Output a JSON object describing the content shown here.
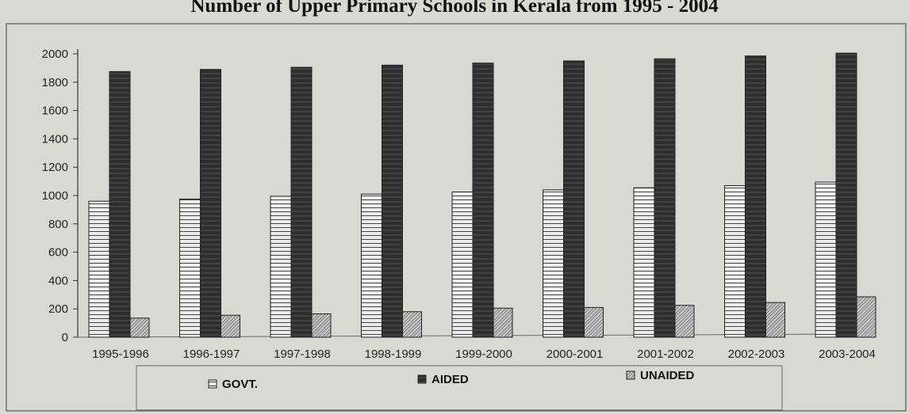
{
  "chart_data": {
    "type": "bar",
    "title": "Number of Upper Primary Schools in Kerala from 1995 - 2004",
    "categories": [
      "1995-1996",
      "1996-1997",
      "1997-1998",
      "1998-1999",
      "1999-2000",
      "2000-2001",
      "2001-2002",
      "2002-2003",
      "2003-2004"
    ],
    "series": [
      {
        "name": "GOVT.",
        "values": [
          960,
          975,
          995,
          1010,
          1025,
          1040,
          1055,
          1070,
          1095
        ]
      },
      {
        "name": "AIDED",
        "values": [
          1875,
          1890,
          1905,
          1920,
          1935,
          1950,
          1965,
          1985,
          2005
        ]
      },
      {
        "name": "UNAIDED",
        "values": [
          135,
          155,
          165,
          180,
          205,
          210,
          225,
          245,
          285
        ]
      }
    ],
    "y_ticks": [
      "0",
      "200",
      "400",
      "600",
      "800",
      "1000",
      "1200",
      "1400",
      "1600",
      "1800",
      "2000"
    ],
    "ylim": [
      0,
      2000
    ],
    "grid": false,
    "legend_position": "bottom",
    "colors": {
      "govt": "#ececec",
      "aided": "#2e2e2e",
      "unaided": "#bdbdbd",
      "background": "#d9d9d4"
    }
  }
}
